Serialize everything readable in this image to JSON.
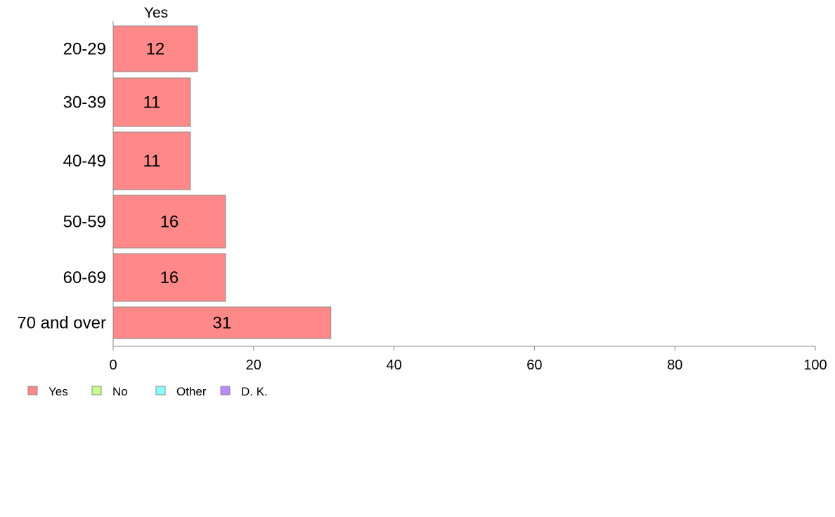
{
  "chart_data": {
    "type": "bar",
    "orientation": "horizontal",
    "stacked": true,
    "categories": [
      "20-29",
      "30-39",
      "40-49",
      "50-59",
      "60-69",
      "70 and over"
    ],
    "series": [
      {
        "name": "Yes",
        "values": [
          12,
          11,
          11,
          16,
          16,
          31
        ]
      }
    ],
    "data_labels": [
      "12",
      "11",
      "11",
      "16",
      "16",
      "31"
    ],
    "segment_label": "Yes",
    "xlim": [
      0,
      100
    ],
    "xticks": [
      "0",
      "20",
      "40",
      "60",
      "80",
      "100"
    ],
    "legend": {
      "placement": "bottom-left",
      "entries": [
        "Yes",
        "No",
        "Other",
        "D. K."
      ]
    },
    "grid": false
  },
  "colors": {
    "Yes": "#ff8888",
    "No": "#c8ff88",
    "Other": "#88ffff",
    "D. K.": "#bb88ff",
    "bar_stroke": "#888888",
    "axis": "#888888"
  }
}
